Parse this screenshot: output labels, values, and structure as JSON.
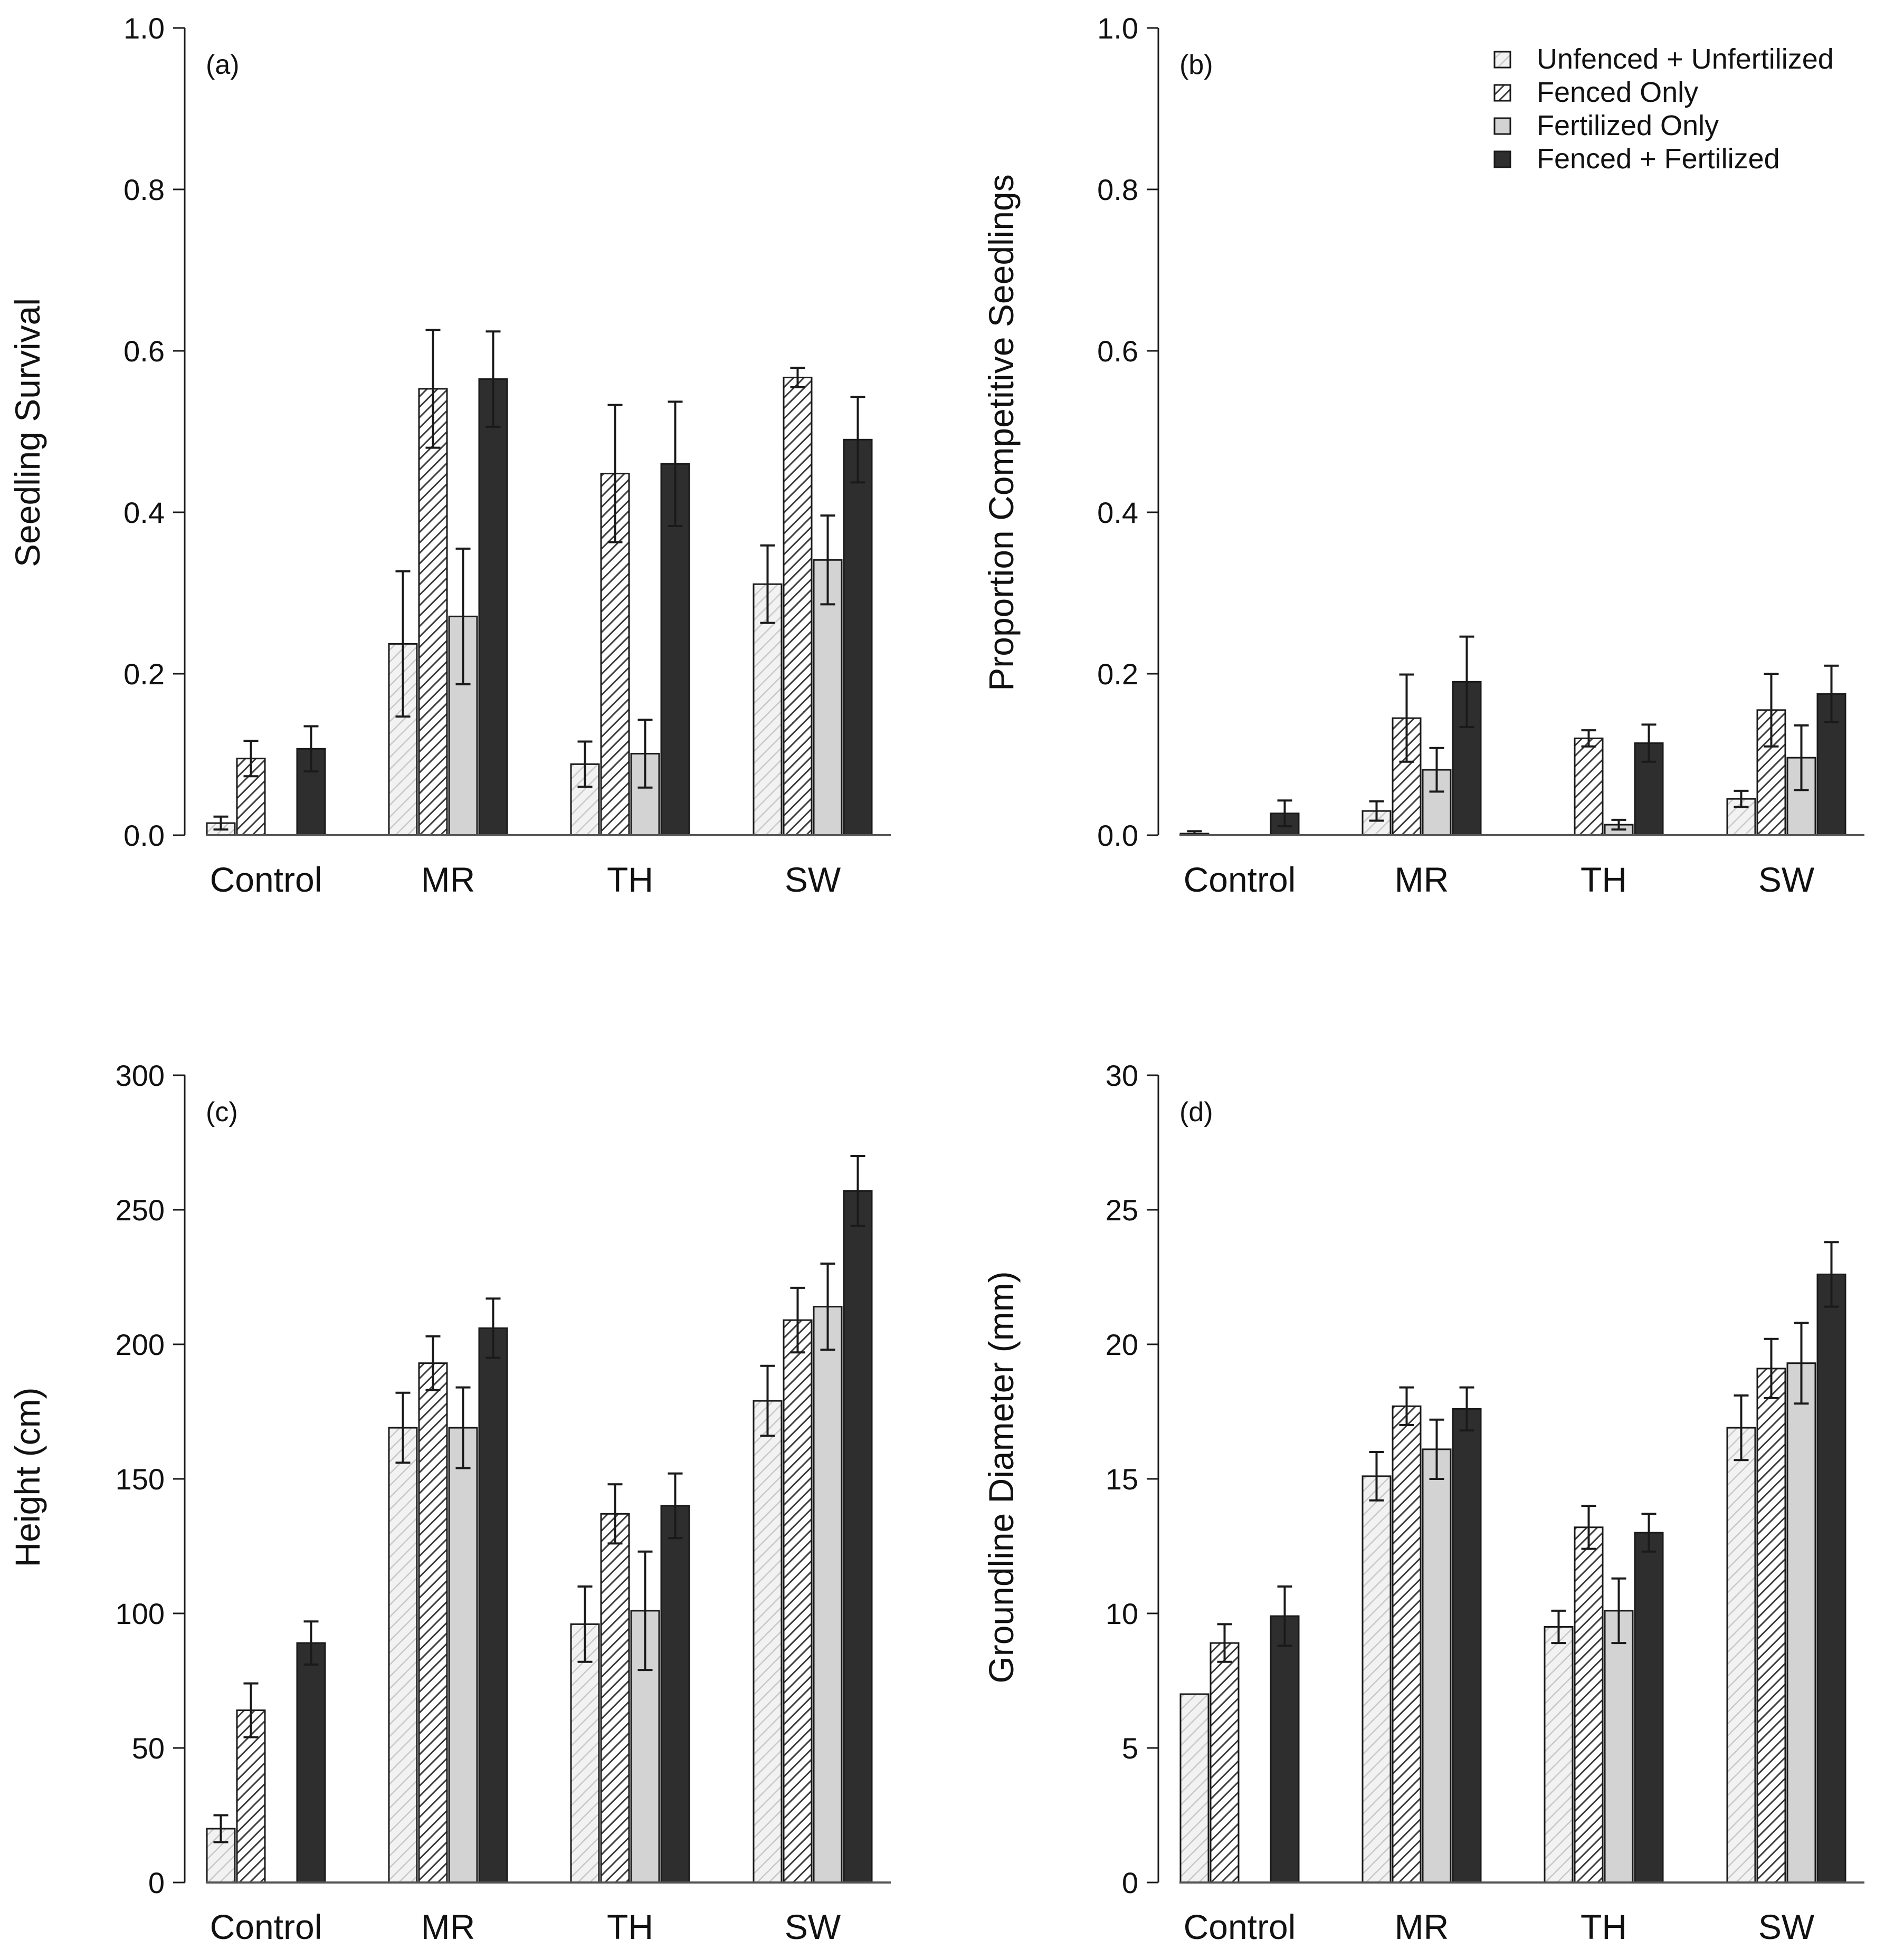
{
  "colors": {
    "unfenced_fill": "#f2f2f2",
    "unfenced_hatch": "#c8c8c8",
    "fenced_fill": "#ffffff",
    "fenced_hatch": "#3c3c3c",
    "fertilized_fill": "#d3d3d3",
    "fenced_fertilized_fill": "#2e2e2e",
    "outline": "#1a1a1a"
  },
  "legend": {
    "items": [
      {
        "label": "Unfenced + Unfertilized",
        "style": "unfenced"
      },
      {
        "label": "Fenced Only",
        "style": "fenced"
      },
      {
        "label": "Fertilized Only",
        "style": "fertilized"
      },
      {
        "label": "Fenced + Fertilized",
        "style": "fenced_fertilized"
      }
    ]
  },
  "chart_data": [
    {
      "type": "bar",
      "panel": "(a)",
      "ylabel": "Seedling Survival",
      "ylim": [
        0,
        1.0
      ],
      "yticks": [
        "0.0",
        "0.2",
        "0.4",
        "0.6",
        "0.8",
        "1.0"
      ],
      "categories": [
        "Control",
        "MR",
        "TH",
        "SW"
      ],
      "series": [
        {
          "name": "Unfenced + Unfertilized",
          "values": [
            0.015,
            0.237,
            0.088,
            0.311
          ],
          "errors": [
            0.008,
            0.09,
            0.028,
            0.048
          ]
        },
        {
          "name": "Fenced Only",
          "values": [
            0.095,
            0.553,
            0.448,
            0.567
          ],
          "errors": [
            0.022,
            0.073,
            0.085,
            0.012
          ]
        },
        {
          "name": "Fertilized Only",
          "values": [
            0.0,
            0.271,
            0.101,
            0.341
          ],
          "errors": [
            0.0,
            0.084,
            0.042,
            0.055
          ]
        },
        {
          "name": "Fenced + Fertilized",
          "values": [
            0.107,
            0.565,
            0.46,
            0.49
          ],
          "errors": [
            0.028,
            0.059,
            0.077,
            0.053
          ]
        }
      ]
    },
    {
      "type": "bar",
      "panel": "(b)",
      "ylabel": "Proportion Competitive Seedlings",
      "ylim": [
        0,
        1.0
      ],
      "yticks": [
        "0.0",
        "0.2",
        "0.4",
        "0.6",
        "0.8",
        "1.0"
      ],
      "categories": [
        "Control",
        "MR",
        "TH",
        "SW"
      ],
      "series": [
        {
          "name": "Unfenced + Unfertilized",
          "values": [
            0.002,
            0.03,
            0.0,
            0.045
          ],
          "errors": [
            0.003,
            0.012,
            0.0,
            0.01
          ]
        },
        {
          "name": "Fenced Only",
          "values": [
            0.0,
            0.145,
            0.12,
            0.155
          ],
          "errors": [
            0.0,
            0.054,
            0.01,
            0.045
          ]
        },
        {
          "name": "Fertilized Only",
          "values": [
            0.0,
            0.081,
            0.013,
            0.096
          ],
          "errors": [
            0.0,
            0.027,
            0.006,
            0.04
          ]
        },
        {
          "name": "Fenced + Fertilized",
          "values": [
            0.027,
            0.19,
            0.114,
            0.175
          ],
          "errors": [
            0.016,
            0.056,
            0.023,
            0.035
          ]
        }
      ]
    },
    {
      "type": "bar",
      "panel": "(c)",
      "ylabel": "Height (cm)",
      "ylim": [
        0,
        300
      ],
      "yticks": [
        "0",
        "50",
        "100",
        "150",
        "200",
        "250",
        "300"
      ],
      "categories": [
        "Control",
        "MR",
        "TH",
        "SW"
      ],
      "series": [
        {
          "name": "Unfenced + Unfertilized",
          "values": [
            20,
            169,
            96,
            179
          ],
          "errors": [
            5,
            13,
            14,
            13
          ]
        },
        {
          "name": "Fenced Only",
          "values": [
            64,
            193,
            137,
            209
          ],
          "errors": [
            10,
            10,
            11,
            12
          ]
        },
        {
          "name": "Fertilized Only",
          "values": [
            0,
            169,
            101,
            214
          ],
          "errors": [
            0,
            15,
            22,
            16
          ]
        },
        {
          "name": "Fenced + Fertilized",
          "values": [
            89,
            206,
            140,
            257
          ],
          "errors": [
            8,
            11,
            12,
            13
          ]
        }
      ]
    },
    {
      "type": "bar",
      "panel": "(d)",
      "ylabel": "Groundline Diameter (mm)",
      "ylim": [
        0,
        30
      ],
      "yticks": [
        "0",
        "5",
        "10",
        "15",
        "20",
        "25",
        "30"
      ],
      "categories": [
        "Control",
        "MR",
        "TH",
        "SW"
      ],
      "series": [
        {
          "name": "Unfenced + Unfertilized",
          "values": [
            7.0,
            15.1,
            9.5,
            16.9
          ],
          "errors": [
            0.0,
            0.9,
            0.6,
            1.2
          ]
        },
        {
          "name": "Fenced Only",
          "values": [
            8.9,
            17.7,
            13.2,
            19.1
          ],
          "errors": [
            0.7,
            0.7,
            0.8,
            1.1
          ]
        },
        {
          "name": "Fertilized Only",
          "values": [
            0.0,
            16.1,
            10.1,
            19.3
          ],
          "errors": [
            0.0,
            1.1,
            1.2,
            1.5
          ]
        },
        {
          "name": "Fenced + Fertilized",
          "values": [
            9.9,
            17.6,
            13.0,
            22.6
          ],
          "errors": [
            1.1,
            0.8,
            0.7,
            1.2
          ]
        }
      ]
    }
  ]
}
